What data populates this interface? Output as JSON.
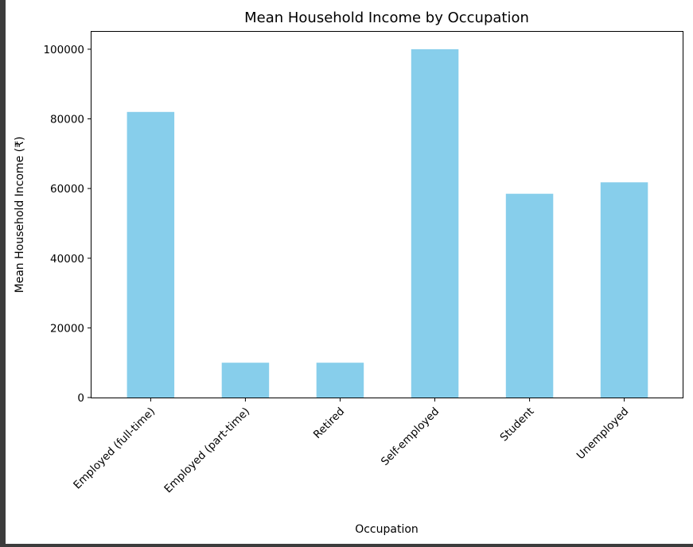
{
  "chart_data": {
    "type": "bar",
    "title": "Mean Household Income by Occupation",
    "xlabel": "Occupation",
    "ylabel": "Mean Household Income (₹)",
    "categories": [
      "Employed (full-time)",
      "Employed (part-time)",
      "Retired",
      "Self-employed",
      "Student",
      "Unemployed"
    ],
    "values": [
      82000,
      10000,
      10000,
      100000,
      58500,
      61800
    ],
    "ylim": [
      0,
      105000
    ],
    "yticks": [
      "0",
      "20000",
      "40000",
      "60000",
      "80000",
      "100000"
    ],
    "bar_color": "#87ceeb",
    "grid": false,
    "legend": "none"
  }
}
